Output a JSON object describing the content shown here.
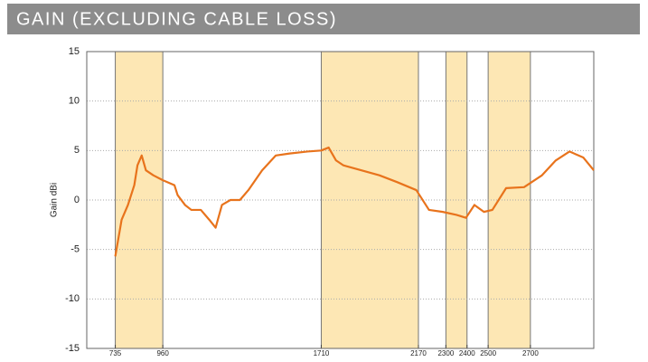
{
  "chart_data": {
    "type": "line",
    "title": "GAIN (EXCLUDING CABLE LOSS)",
    "y_label": "Gain dBi",
    "x": [
      735,
      765,
      795,
      825,
      840,
      860,
      880,
      915,
      960,
      1015,
      1030,
      1065,
      1095,
      1140,
      1180,
      1210,
      1240,
      1280,
      1325,
      1365,
      1430,
      1495,
      1560,
      1645,
      1710,
      1745,
      1780,
      1815,
      1900,
      1985,
      2070,
      2160,
      2220,
      2285,
      2350,
      2395,
      2435,
      2480,
      2520,
      2585,
      2670,
      2755,
      2820,
      2885,
      2950,
      3000
    ],
    "series": [
      {
        "name": "Gain",
        "color": "#e8731c",
        "values": [
          -5.7,
          -2,
          -0.5,
          1.5,
          3.5,
          4.5,
          3,
          2.5,
          2,
          1.5,
          0.5,
          -0.5,
          -1,
          -1,
          -2,
          -2.8,
          -0.5,
          0,
          0,
          1,
          3,
          4.5,
          4.7,
          4.9,
          5,
          5.3,
          4,
          3.5,
          3,
          2.5,
          1.8,
          1,
          -1,
          -1.2,
          -1.5,
          -1.8,
          -0.5,
          -1.2,
          -1,
          1.2,
          1.3,
          2.5,
          4,
          4.9,
          4.3,
          3
        ]
      }
    ],
    "bands": [
      [
        735,
        960
      ],
      [
        1710,
        2170
      ],
      [
        2300,
        2400
      ],
      [
        2500,
        2700
      ]
    ],
    "band_color": "#fde7b4",
    "xlim": [
      600,
      3000
    ],
    "xticks": [
      735,
      960,
      1710,
      2170,
      2300,
      2400,
      2500,
      2700
    ],
    "ylim": [
      -15,
      15
    ],
    "yticks": [
      -15,
      -10,
      -5,
      0,
      5,
      10,
      15
    ],
    "grid": true
  }
}
